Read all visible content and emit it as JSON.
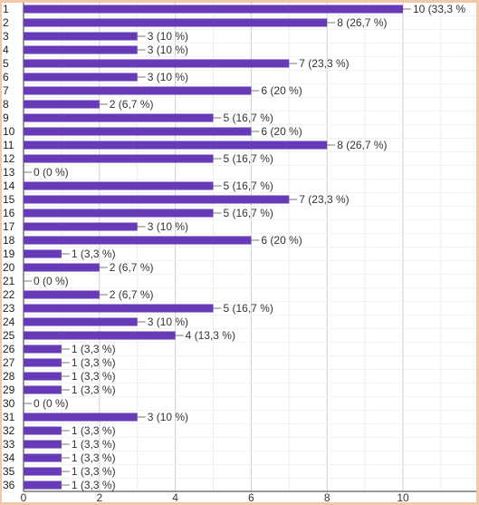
{
  "chart_data": {
    "type": "bar",
    "orientation": "horizontal",
    "categories": [
      "1",
      "2",
      "3",
      "4",
      "5",
      "6",
      "7",
      "8",
      "9",
      "10",
      "11",
      "12",
      "13",
      "14",
      "15",
      "16",
      "17",
      "18",
      "19",
      "20",
      "21",
      "22",
      "23",
      "24",
      "25",
      "26",
      "27",
      "28",
      "29",
      "30",
      "31",
      "32",
      "33",
      "34",
      "35",
      "36"
    ],
    "values": [
      10,
      8,
      3,
      3,
      7,
      3,
      6,
      2,
      5,
      6,
      8,
      5,
      0,
      5,
      7,
      5,
      3,
      6,
      1,
      2,
      0,
      2,
      5,
      3,
      4,
      1,
      1,
      1,
      1,
      0,
      3,
      1,
      1,
      1,
      1,
      1
    ],
    "labels": [
      "10 (33,3 %",
      "8 (26,7 %)",
      "3 (10 %)",
      "3 (10 %)",
      "7 (23,3 %)",
      "3 (10 %)",
      "6 (20 %)",
      "2 (6,7 %)",
      "5 (16,7 %)",
      "6 (20 %)",
      "8 (26,7 %)",
      "5 (16,7 %)",
      "0 (0 %)",
      "5 (16,7 %)",
      "7 (23,3 %)",
      "5 (16,7 %)",
      "3 (10 %)",
      "6 (20 %)",
      "1 (3,3 %)",
      "2 (6,7 %)",
      "0 (0 %)",
      "2 (6,7 %)",
      "5 (16,7 %)",
      "3 (10 %)",
      "4 (13,3 %)",
      "1 (3,3 %)",
      "1 (3,3 %)",
      "1 (3,3 %)",
      "1 (3,3 %)",
      "0 (0 %)",
      "3 (10 %)",
      "1 (3,3 %)",
      "1 (3,3 %)",
      "1 (3,3 %)",
      "1 (3,3 %)",
      "1 (3,3 %)"
    ],
    "xticks": [
      "0",
      "2",
      "4",
      "6",
      "8",
      "10"
    ],
    "xlim": [
      0,
      11.5
    ],
    "grid": true,
    "bar_color": "#673ab7",
    "grid_color": "#cccccc"
  }
}
